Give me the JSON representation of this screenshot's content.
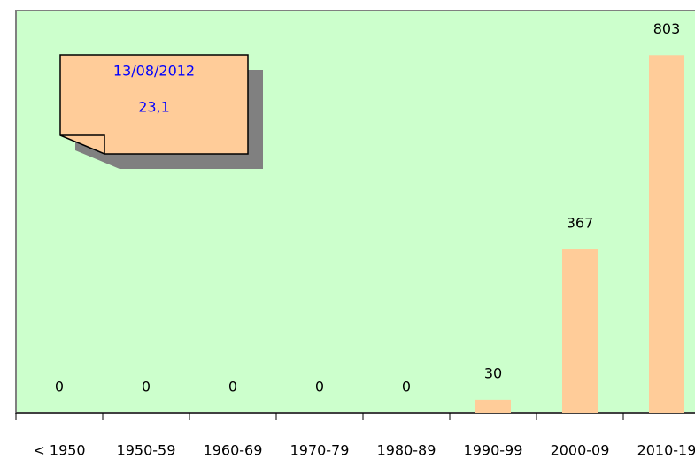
{
  "chart_data": {
    "type": "bar",
    "categories": [
      "< 1950",
      "1950-59",
      "1960-69",
      "1970-79",
      "1980-89",
      "1990-99",
      "2000-09",
      "2010-19"
    ],
    "values": [
      0,
      0,
      0,
      0,
      0,
      30,
      367,
      803
    ],
    "color": "#ffcc99",
    "background": "#ccffcc",
    "annotations": [
      "13/08/2012",
      "23,1"
    ]
  }
}
